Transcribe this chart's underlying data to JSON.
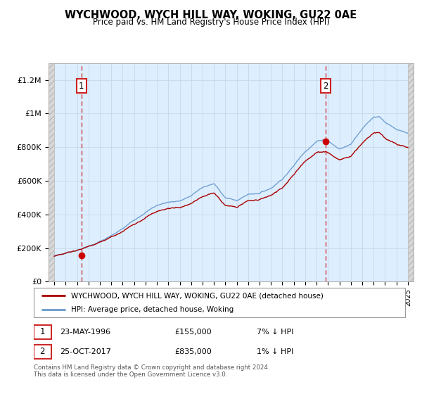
{
  "title": "WYCHWOOD, WYCH HILL WAY, WOKING, GU22 0AE",
  "subtitle": "Price paid vs. HM Land Registry's House Price Index (HPI)",
  "sale1_date": "23-MAY-1996",
  "sale1_price": 155000,
  "sale1_label": "1",
  "sale1_year": 1996.38,
  "sale2_date": "25-OCT-2017",
  "sale2_price": 835000,
  "sale2_label": "2",
  "sale2_year": 2017.81,
  "legend_entry1": "WYCHWOOD, WYCH HILL WAY, WOKING, GU22 0AE (detached house)",
  "legend_entry2": "HPI: Average price, detached house, Woking",
  "footer": "Contains HM Land Registry data © Crown copyright and database right 2024.\nThis data is licensed under the Open Government Licence v3.0.",
  "sale_line_color": "#aa0000",
  "hpi_line_color": "#6699cc",
  "hpi_fill_color": "#ddeeff",
  "dashed_line_color": "#cc2222",
  "ylim": [
    0,
    1300000
  ],
  "xmin": 1993.5,
  "xmax": 2025.5,
  "data_xstart": 1994.0,
  "data_xend": 2025.0,
  "yticks": [
    0,
    200000,
    400000,
    600000,
    800000,
    1000000,
    1200000
  ],
  "ytick_labels": [
    "£0",
    "£200K",
    "£400K",
    "£600K",
    "£800K",
    "£1M",
    "£1.2M"
  ]
}
